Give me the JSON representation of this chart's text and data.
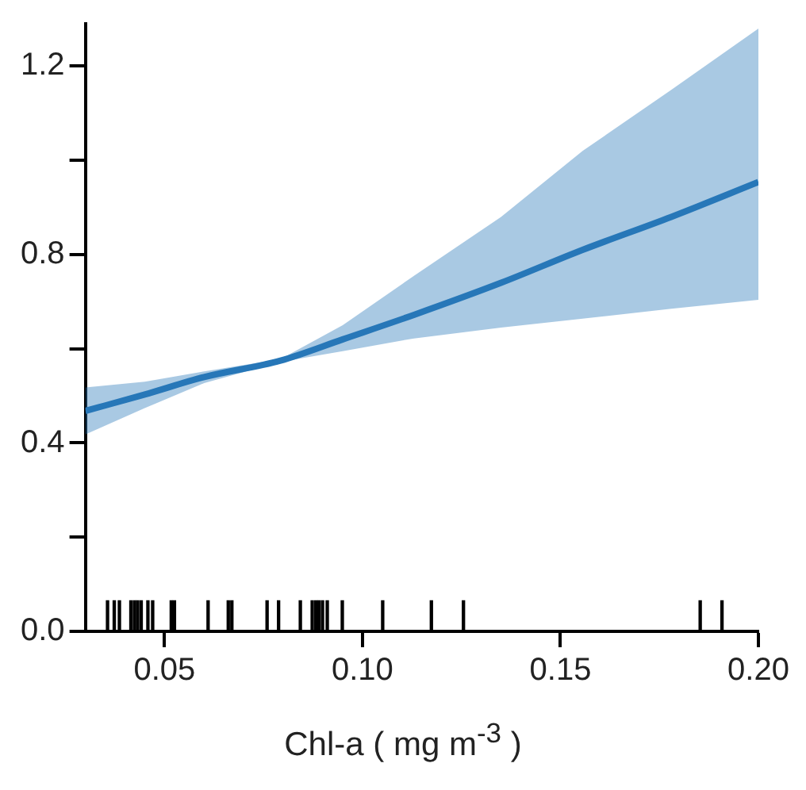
{
  "chart_data": {
    "type": "line",
    "xlabel": "Chl-a ( mg  m$^{-3}$ )",
    "x": [
      0.03,
      0.045,
      0.06,
      0.0793,
      0.095,
      0.113,
      0.135,
      0.1556,
      0.178,
      0.2
    ],
    "series": [
      {
        "color": "#2777b8",
        "values": [
          0.468,
          0.503,
          0.54,
          0.575,
          0.62,
          0.672,
          0.74,
          0.81,
          0.88,
          0.954
        ],
        "lower": [
          0.418,
          0.474,
          0.527,
          0.572,
          0.595,
          0.622,
          0.645,
          0.664,
          0.685,
          0.704
        ],
        "upper": [
          0.518,
          0.53,
          0.552,
          0.578,
          0.65,
          0.755,
          0.88,
          1.02,
          1.15,
          1.28
        ]
      },
      {
        "type": "bar",
        "color": "#000000",
        "x": [
          0.0356,
          0.0373,
          0.0386,
          0.0415,
          0.0424,
          0.0432,
          0.0441,
          0.0458,
          0.047,
          0.0517,
          0.0525,
          0.061,
          0.0661,
          0.067,
          0.0759,
          0.0788,
          0.0843,
          0.0873,
          0.0882,
          0.089,
          0.0899,
          0.0911,
          0.0949,
          0.1051,
          0.1174,
          0.1255,
          0.1853,
          0.1908
        ],
        "values": [
          0.065,
          0.065,
          0.065,
          0.065,
          0.065,
          0.065,
          0.065,
          0.065,
          0.065,
          0.065,
          0.065,
          0.065,
          0.065,
          0.065,
          0.065,
          0.065,
          0.065,
          0.065,
          0.065,
          0.065,
          0.065,
          0.065,
          0.065,
          0.065,
          0.065,
          0.065,
          0.065,
          0.065
        ]
      }
    ],
    "xlim": [
      0.03,
      0.2
    ],
    "xticks": [
      {
        "value": 0.05,
        "label": "0.05"
      },
      {
        "value": 0.1,
        "label": "0.10"
      },
      {
        "value": 0.15,
        "label": "0.15"
      },
      {
        "value": 0.2,
        "label": "0.20"
      }
    ],
    "ylim": [
      0,
      1.29
    ],
    "yticks": [
      {
        "value": 0,
        "label": "0.0"
      },
      {
        "value": 0.2,
        "label": null
      },
      {
        "value": 0.4,
        "label": "0.4"
      },
      {
        "value": 0.6,
        "label": null
      },
      {
        "value": 0.8,
        "label": "0.8"
      },
      {
        "value": 1.0,
        "label": null
      },
      {
        "value": 1.2,
        "label": "1.2"
      }
    ],
    "grid": false,
    "legend": false
  }
}
